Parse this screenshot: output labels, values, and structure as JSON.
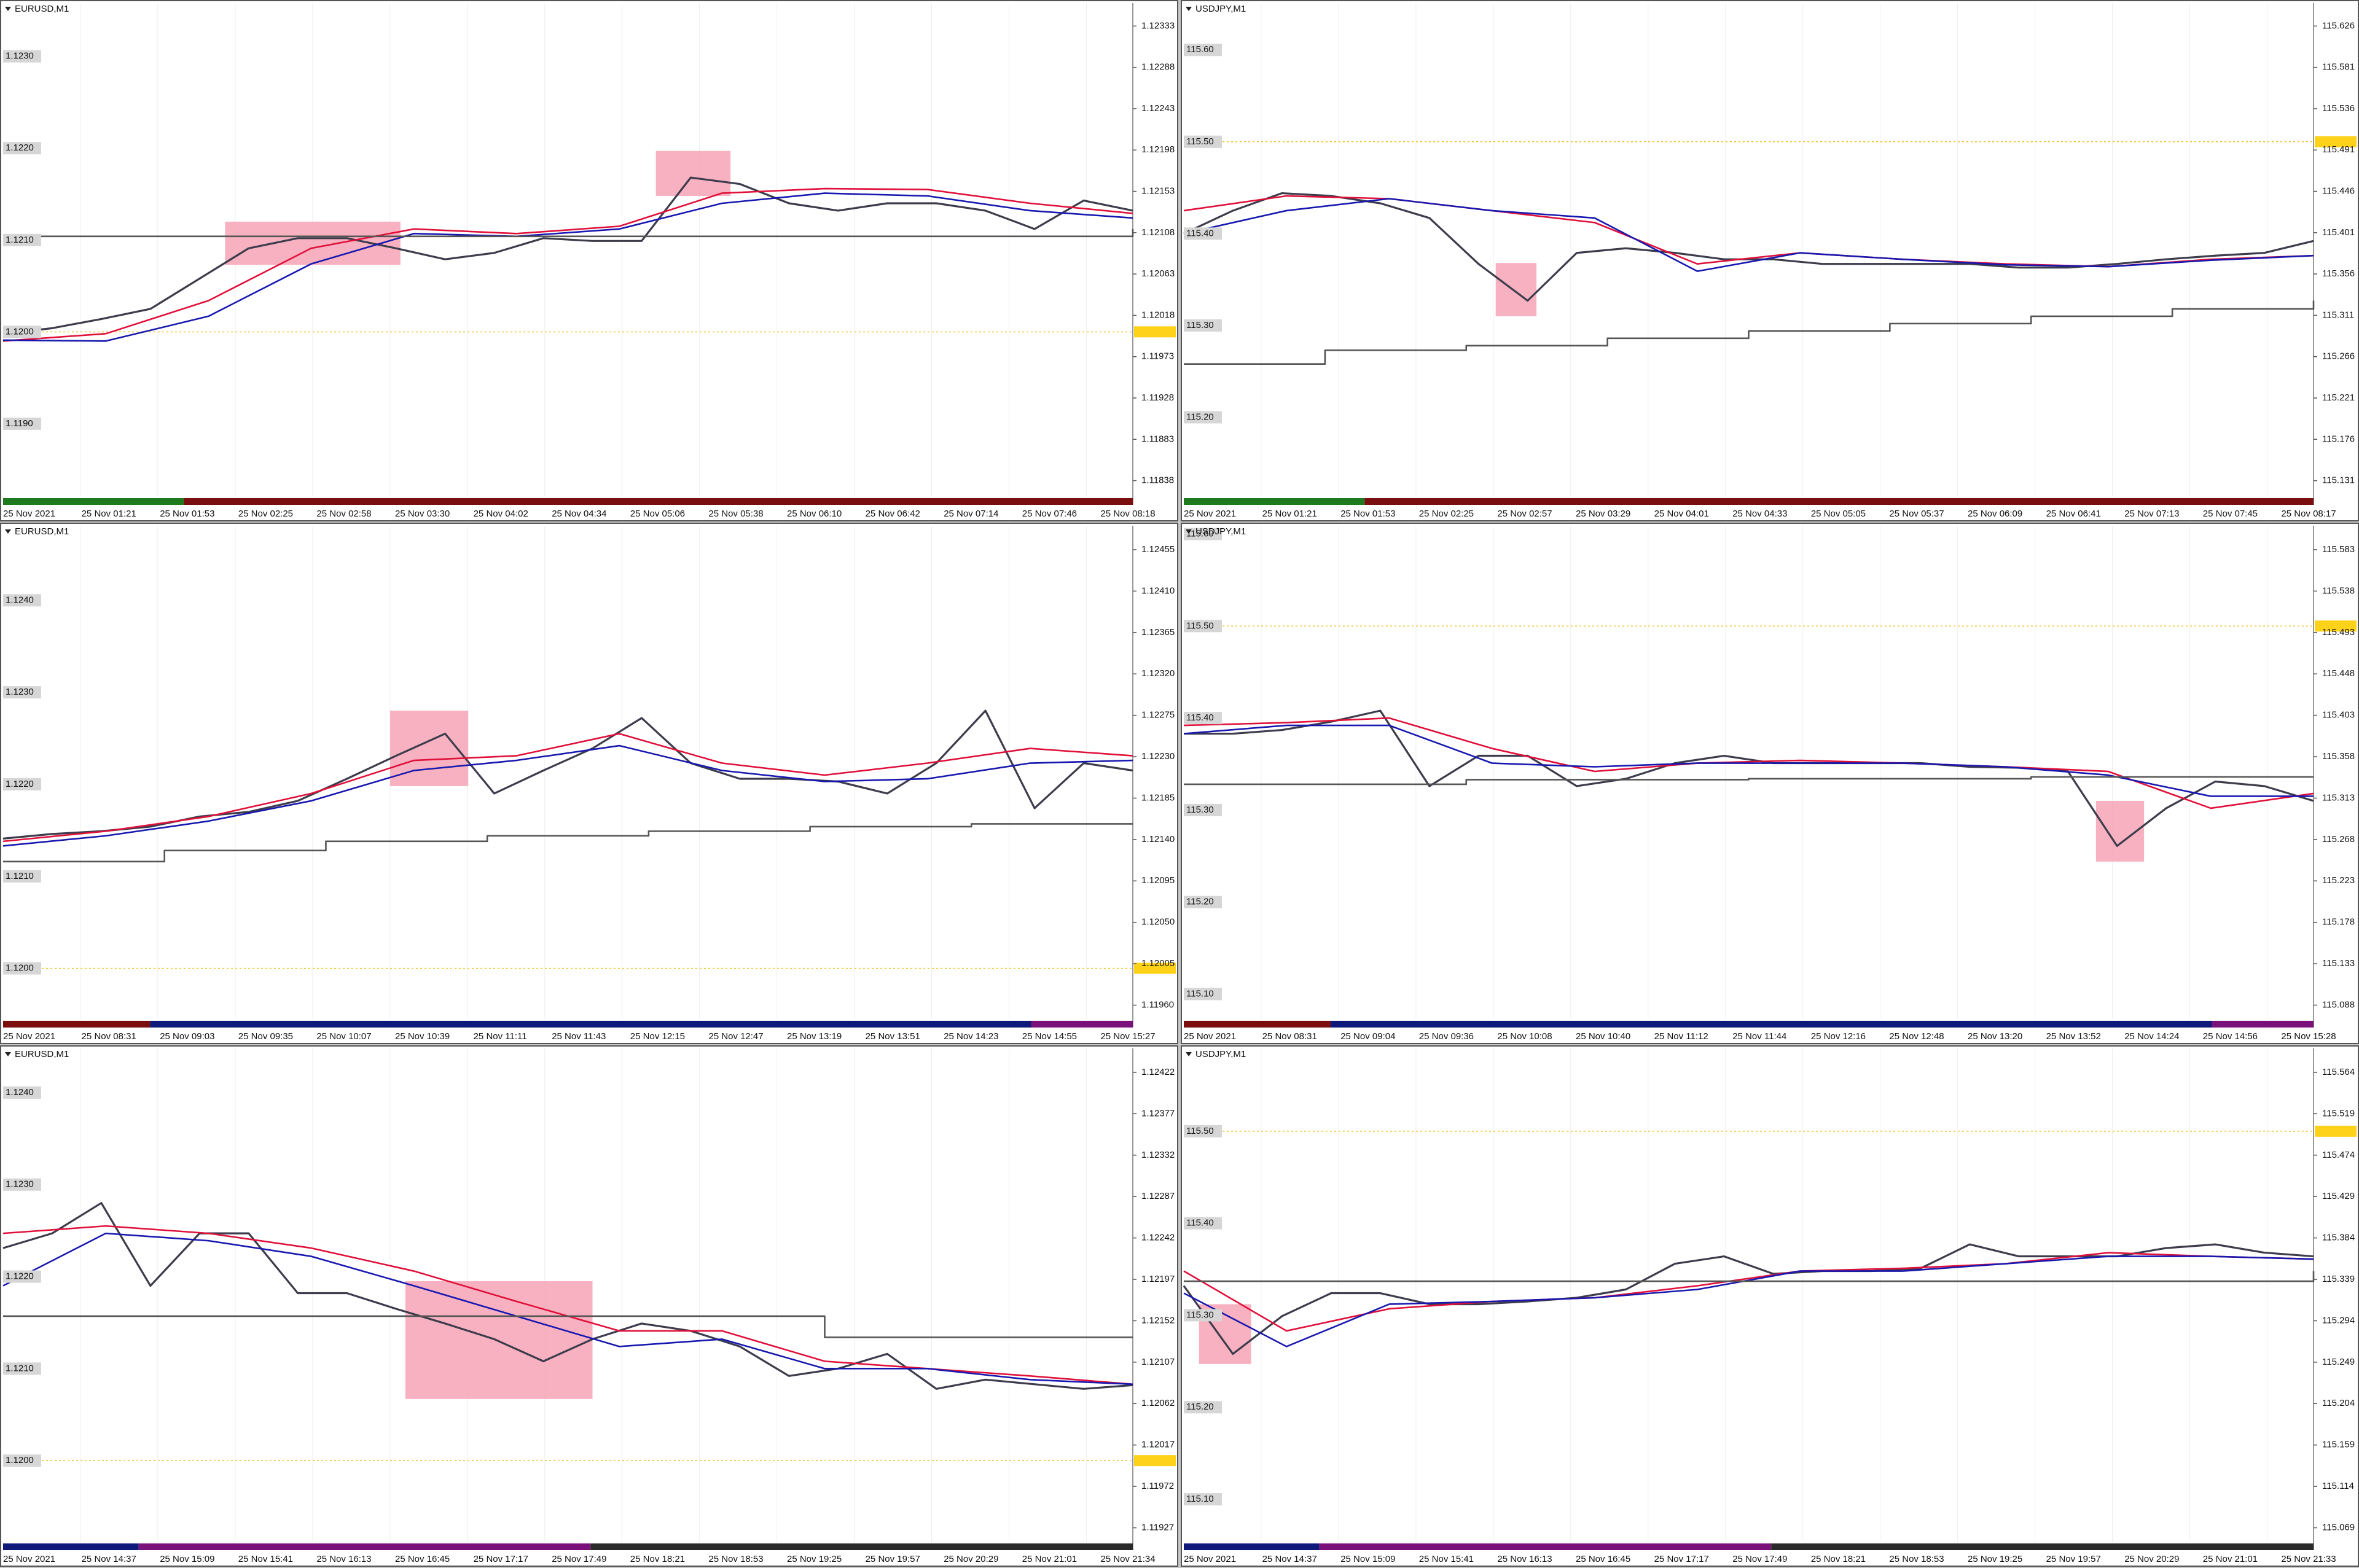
{
  "chart_data": [
    {
      "type": "line",
      "title": "EURUSD,M1",
      "ylim": [
        1.11821,
        1.12358
      ],
      "yticks": [
        1.12333,
        1.12288,
        1.12243,
        1.12198,
        1.12153,
        1.12108,
        1.12063,
        1.12018,
        1.11973,
        1.11928,
        1.11883,
        1.11838
      ],
      "left_labels": [
        {
          "value": 1.123,
          "label": "1.1230"
        },
        {
          "value": 1.122,
          "label": "1.1220"
        },
        {
          "value": 1.121,
          "label": "1.1210"
        },
        {
          "value": 1.12,
          "label": "1.1200"
        },
        {
          "value": 1.119,
          "label": "1.1190"
        }
      ],
      "x_labels": [
        "25 Nov 2021",
        "25 Nov 01:21",
        "25 Nov 01:53",
        "25 Nov 02:25",
        "25 Nov 02:58",
        "25 Nov 03:30",
        "25 Nov 04:02",
        "25 Nov 04:34",
        "25 Nov 05:06",
        "25 Nov 05:38",
        "25 Nov 06:10",
        "25 Nov 06:42",
        "25 Nov 07:14",
        "25 Nov 07:46",
        "25 Nov 08:18"
      ],
      "level": 1.12,
      "highlights": [
        {
          "x": [
            4.52,
            8.09
          ],
          "ylim": [
            1.12073,
            1.1212
          ]
        },
        {
          "x": [
            13.29,
            14.81
          ],
          "ylim": [
            1.12148,
            1.12197
          ]
        }
      ],
      "series": [
        {
          "color": "#3c3c4c",
          "values": [
            1.11998,
            1.12004,
            1.12014,
            1.12025,
            1.12058,
            1.12091,
            1.12102,
            1.12102,
            1.12091,
            1.12079,
            1.12086,
            1.12102,
            1.12099,
            1.12099,
            1.12168,
            1.12161,
            1.1214,
            1.12132,
            1.1214,
            1.1214,
            1.12132,
            1.12112,
            1.12143,
            1.12132
          ]
        },
        {
          "color": "#e0103a",
          "values": [
            1.1199,
            1.11998,
            1.12034,
            1.12091,
            1.12112,
            1.12107,
            1.12115,
            1.12151,
            1.12156,
            1.12155,
            1.1214,
            1.12129
          ]
        },
        {
          "color": "#1818b0",
          "values": [
            1.11991,
            1.1199,
            1.12017,
            1.12074,
            1.12107,
            1.12104,
            1.12112,
            1.1214,
            1.12151,
            1.12148,
            1.12132,
            1.12124
          ]
        },
        {
          "color": "#555555",
          "step": true,
          "values": [
            1.12104,
            1.12112
          ]
        }
      ]
    },
    {
      "type": "line",
      "title": "USDJPY,M1",
      "ylim": [
        115.114,
        115.651
      ],
      "yticks": [
        115.626,
        115.581,
        115.536,
        115.491,
        115.446,
        115.401,
        115.356,
        115.311,
        115.266,
        115.221,
        115.176,
        115.131
      ],
      "left_labels": [
        {
          "value": 115.6,
          "label": "115.60"
        },
        {
          "value": 115.5,
          "label": "115.50"
        },
        {
          "value": 115.4,
          "label": "115.40"
        },
        {
          "value": 115.3,
          "label": "115.30"
        },
        {
          "value": 115.2,
          "label": "115.20"
        }
      ],
      "x_labels": [
        "25 Nov 2021",
        "25 Nov 01:21",
        "25 Nov 01:53",
        "25 Nov 02:25",
        "25 Nov 02:57",
        "25 Nov 03:29",
        "25 Nov 04:01",
        "25 Nov 04:33",
        "25 Nov 05:05",
        "25 Nov 05:37",
        "25 Nov 06:09",
        "25 Nov 06:41",
        "25 Nov 07:13",
        "25 Nov 07:45",
        "25 Nov 08:17"
      ],
      "level": 115.5,
      "highlights": [
        {
          "x": [
            6.35,
            7.18
          ],
          "ylim": [
            115.31,
            115.368
          ]
        }
      ],
      "series": [
        {
          "color": "#3c3c4c",
          "values": [
            115.4,
            115.425,
            115.444,
            115.441,
            115.433,
            115.417,
            115.367,
            115.327,
            115.379,
            115.384,
            115.379,
            115.372,
            115.372,
            115.367,
            115.367,
            115.367,
            115.367,
            115.363,
            115.363,
            115.367,
            115.372,
            115.376,
            115.379,
            115.392
          ]
        },
        {
          "color": "#e0103a",
          "values": [
            115.425,
            115.441,
            115.438,
            115.425,
            115.412,
            115.367,
            115.379,
            115.372,
            115.367,
            115.364,
            115.372,
            115.376
          ]
        },
        {
          "color": "#1818b0",
          "values": [
            115.4,
            115.425,
            115.438,
            115.425,
            115.417,
            115.359,
            115.379,
            115.372,
            115.366,
            115.364,
            115.371,
            115.376
          ]
        },
        {
          "color": "#555555",
          "step": true,
          "values": [
            115.258,
            115.273,
            115.278,
            115.286,
            115.294,
            115.302,
            115.31,
            115.318,
            115.327
          ]
        }
      ]
    },
    {
      "type": "line",
      "title": "EURUSD,M1",
      "ylim": [
        1.11945,
        1.12481
      ],
      "yticks": [
        1.12455,
        {
          "value": 1.1241,
          "label": "1.12410"
        },
        1.12365,
        {
          "value": 1.1232,
          "label": "1.12320"
        },
        1.12275,
        {
          "value": 1.1223,
          "label": "1.12230"
        },
        1.12185,
        {
          "value": 1.1214,
          "label": "1.12140"
        },
        1.12095,
        {
          "value": 1.1205,
          "label": "1.12050"
        },
        1.12005,
        {
          "value": 1.1196,
          "label": "1.11960"
        }
      ],
      "left_labels": [
        {
          "value": 1.124,
          "label": "1.1240"
        },
        {
          "value": 1.123,
          "label": "1.1230"
        },
        {
          "value": 1.122,
          "label": "1.1220"
        },
        {
          "value": 1.121,
          "label": "1.1210"
        },
        {
          "value": 1.12,
          "label": "1.1200"
        }
      ],
      "x_labels": [
        "25 Nov 2021",
        "25 Nov 08:31",
        "25 Nov 09:03",
        "25 Nov 09:35",
        "25 Nov 10:07",
        "25 Nov 10:39",
        "25 Nov 11:11",
        "25 Nov 11:43",
        "25 Nov 12:15",
        "25 Nov 12:47",
        "25 Nov 13:19",
        "25 Nov 13:51",
        "25 Nov 14:23",
        "25 Nov 14:55",
        "25 Nov 15:27"
      ],
      "level": 1.12,
      "highlights": [
        {
          "x": [
            7.88,
            9.47
          ],
          "ylim": [
            1.12198,
            1.1228
          ]
        }
      ],
      "series": [
        {
          "color": "#3c3c4c",
          "values": [
            1.12141,
            1.12146,
            1.12149,
            1.12154,
            1.12165,
            1.1217,
            1.12182,
            1.12206,
            1.12231,
            1.12255,
            1.1219,
            1.12215,
            1.12239,
            1.12272,
            1.12223,
            1.12206,
            1.12206,
            1.12203,
            1.1219,
            1.12223,
            1.1228,
            1.12174,
            1.12223,
            1.12215
          ]
        },
        {
          "color": "#e0103a",
          "values": [
            1.12138,
            1.12149,
            1.12165,
            1.1219,
            1.12226,
            1.12231,
            1.12255,
            1.12223,
            1.1221,
            1.12223,
            1.12239,
            1.12231
          ]
        },
        {
          "color": "#1818b0",
          "values": [
            1.12133,
            1.12144,
            1.1216,
            1.12182,
            1.12215,
            1.12226,
            1.12242,
            1.12215,
            1.12203,
            1.12206,
            1.12223,
            1.12226
          ]
        },
        {
          "color": "#555555",
          "step": true,
          "values": [
            1.12116,
            1.12128,
            1.12138,
            1.12144,
            1.12149,
            1.12154,
            1.12157,
            1.12157
          ]
        }
      ]
    },
    {
      "type": "line",
      "title": "USDJPY,M1",
      "ylim": [
        115.073,
        115.609
      ],
      "yticks": [
        115.583,
        115.538,
        115.493,
        115.448,
        115.403,
        115.358,
        115.313,
        115.268,
        115.223,
        115.178,
        115.133,
        115.088
      ],
      "left_labels": [
        {
          "value": 115.6,
          "label": "115.60"
        },
        {
          "value": 115.5,
          "label": "115.50"
        },
        {
          "value": 115.4,
          "label": "115.40"
        },
        {
          "value": 115.3,
          "label": "115.30"
        },
        {
          "value": 115.2,
          "label": "115.20"
        },
        {
          "value": 115.1,
          "label": "115.10"
        }
      ],
      "x_labels": [
        "25 Nov 2021",
        "25 Nov 08:31",
        "25 Nov 09:04",
        "25 Nov 09:36",
        "25 Nov 10:08",
        "25 Nov 10:40",
        "25 Nov 11:12",
        "25 Nov 11:44",
        "25 Nov 12:16",
        "25 Nov 12:48",
        "25 Nov 13:20",
        "25 Nov 13:52",
        "25 Nov 14:24",
        "25 Nov 14:56",
        "25 Nov 15:28"
      ],
      "level": 115.5,
      "highlights": [
        {
          "x": [
            18.57,
            19.55
          ],
          "ylim": [
            115.244,
            115.31
          ]
        }
      ],
      "series": [
        {
          "color": "#3c3c4c",
          "values": [
            115.383,
            115.383,
            115.387,
            115.396,
            115.408,
            115.326,
            115.359,
            115.359,
            115.326,
            115.334,
            115.351,
            115.359,
            115.351,
            115.351,
            115.351,
            115.351,
            115.347,
            115.346,
            115.342,
            115.261,
            115.302,
            115.331,
            115.326,
            115.31
          ]
        },
        {
          "color": "#e0103a",
          "values": [
            115.392,
            115.395,
            115.4,
            115.367,
            115.342,
            115.351,
            115.354,
            115.351,
            115.347,
            115.342,
            115.302,
            115.318
          ]
        },
        {
          "color": "#1818b0",
          "values": [
            115.383,
            115.392,
            115.392,
            115.351,
            115.347,
            115.351,
            115.351,
            115.351,
            115.347,
            115.338,
            115.315,
            115.315
          ]
        },
        {
          "color": "#555555",
          "step": true,
          "values": [
            115.328,
            115.333,
            115.334,
            115.336,
            115.336
          ]
        }
      ]
    },
    {
      "type": "line",
      "title": "EURUSD,M1",
      "ylim": [
        1.11912,
        1.12448
      ],
      "yticks": [
        1.12422,
        1.12377,
        1.12332,
        1.12287,
        1.12242,
        1.12197,
        1.12152,
        1.12107,
        1.12062,
        1.12017,
        1.11972,
        1.11927
      ],
      "left_labels": [
        {
          "value": 1.124,
          "label": "1.1240"
        },
        {
          "value": 1.123,
          "label": "1.1230"
        },
        {
          "value": 1.122,
          "label": "1.1220"
        },
        {
          "value": 1.121,
          "label": "1.1210"
        },
        {
          "value": 1.12,
          "label": "1.1200"
        }
      ],
      "x_labels": [
        "25 Nov 2021",
        "25 Nov 14:37",
        "25 Nov 15:09",
        "25 Nov 15:41",
        "25 Nov 16:13",
        "25 Nov 16:45",
        "25 Nov 17:17",
        "25 Nov 17:49",
        "25 Nov 18:21",
        "25 Nov 18:53",
        "25 Nov 19:25",
        "25 Nov 19:57",
        "25 Nov 20:29",
        "25 Nov 21:01",
        "25 Nov 21:34"
      ],
      "level": 1.12,
      "highlights": [
        {
          "x": [
            8.19,
            12.0
          ],
          "ylim": [
            1.12067,
            1.12195
          ]
        }
      ],
      "series": [
        {
          "color": "#3c3c4c",
          "values": [
            1.12231,
            1.12247,
            1.1228,
            1.1219,
            1.12247,
            1.12247,
            1.12182,
            1.12182,
            1.12165,
            1.12149,
            1.12132,
            1.12108,
            1.12132,
            1.12149,
            1.12141,
            1.12124,
            1.12092,
            1.121,
            1.12116,
            1.12078,
            1.12088,
            1.12083,
            1.12078,
            1.12082
          ]
        },
        {
          "color": "#e0103a",
          "values": [
            1.12247,
            1.12255,
            1.12247,
            1.12231,
            1.12206,
            1.12173,
            1.12141,
            1.12141,
            1.12108,
            1.121,
            1.12092,
            1.12083
          ]
        },
        {
          "color": "#1818b0",
          "values": [
            1.1219,
            1.12247,
            1.12239,
            1.12222,
            1.1219,
            1.12157,
            1.12124,
            1.12132,
            1.121,
            1.121,
            1.12088,
            1.12083
          ]
        },
        {
          "color": "#555555",
          "step": true,
          "values": [
            1.12157,
            1.12157,
            1.12157,
            1.12157,
            1.12157,
            1.12157,
            1.12157,
            1.12157,
            1.12134,
            1.12134,
            1.12134,
            1.12134
          ]
        }
      ]
    },
    {
      "type": "line",
      "title": "USDJPY,M1",
      "ylim": [
        115.054,
        115.59
      ],
      "yticks": [
        115.564,
        115.519,
        115.474,
        115.429,
        115.384,
        115.339,
        115.294,
        115.249,
        115.204,
        115.159,
        115.114,
        115.069
      ],
      "left_labels": [
        {
          "value": 115.5,
          "label": "115.50"
        },
        {
          "value": 115.4,
          "label": "115.40"
        },
        {
          "value": 115.3,
          "label": "115.30"
        },
        {
          "value": 115.2,
          "label": "115.20"
        },
        {
          "value": 115.1,
          "label": "115.10"
        }
      ],
      "x_labels": [
        "25 Nov 2021",
        "25 Nov 14:37",
        "25 Nov 15:09",
        "25 Nov 15:41",
        "25 Nov 16:13",
        "25 Nov 16:45",
        "25 Nov 17:17",
        "25 Nov 17:49",
        "25 Nov 18:21",
        "25 Nov 18:53",
        "25 Nov 19:25",
        "25 Nov 19:57",
        "25 Nov 20:29",
        "25 Nov 21:01",
        "25 Nov 21:33"
      ],
      "level": 115.5,
      "highlights": [
        {
          "x": [
            0.31,
            1.37
          ],
          "ylim": [
            115.247,
            115.312
          ]
        }
      ],
      "series": [
        {
          "color": "#3c3c4c",
          "values": [
            115.332,
            115.258,
            115.299,
            115.324,
            115.324,
            115.312,
            115.312,
            115.315,
            115.319,
            115.328,
            115.356,
            115.364,
            115.345,
            115.348,
            115.348,
            115.351,
            115.377,
            115.364,
            115.364,
            115.364,
            115.373,
            115.377,
            115.368,
            115.364
          ]
        },
        {
          "color": "#e0103a",
          "values": [
            115.348,
            115.283,
            115.307,
            115.315,
            115.319,
            115.332,
            115.348,
            115.351,
            115.356,
            115.368,
            115.364,
            115.361
          ]
        },
        {
          "color": "#1818b0",
          "values": [
            115.324,
            115.266,
            115.312,
            115.315,
            115.319,
            115.328,
            115.348,
            115.348,
            115.356,
            115.364,
            115.364,
            115.361
          ]
        },
        {
          "color": "#555555",
          "step": true,
          "values": [
            115.337,
            115.348
          ]
        }
      ]
    }
  ]
}
